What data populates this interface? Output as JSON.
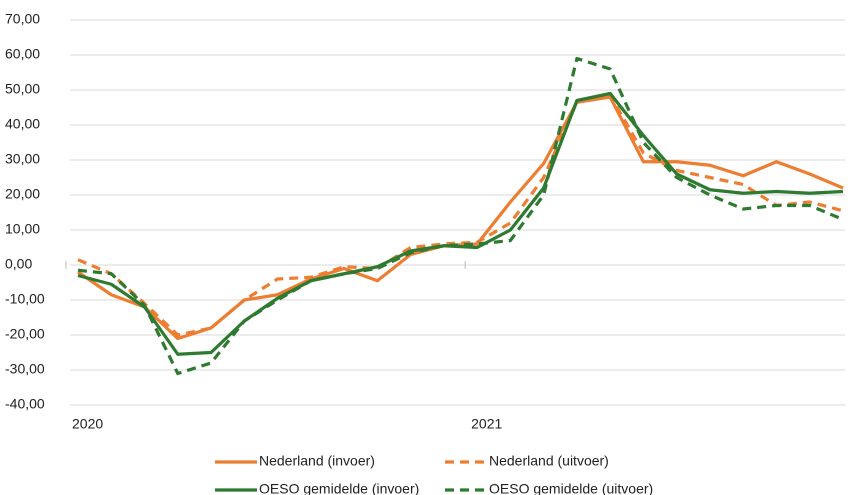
{
  "chart_data": {
    "type": "line",
    "categories": [
      "2020",
      null,
      null,
      null,
      null,
      null,
      null,
      null,
      null,
      null,
      null,
      null,
      "2021",
      null,
      null,
      null,
      null,
      null,
      null,
      null,
      null,
      null,
      null,
      null
    ],
    "series": [
      {
        "name": "Nederland (invoer)",
        "color": "#ed7d31",
        "dashed": false,
        "values": [
          -2,
          -8.5,
          -12,
          -21,
          -18,
          -10,
          -8.5,
          -4,
          -1,
          -4.5,
          3,
          5.5,
          6,
          18,
          29,
          46.5,
          48,
          29.5,
          29.5,
          28.5,
          25.5,
          29.5,
          26,
          22
        ]
      },
      {
        "name": "Nederland (uitvoer)",
        "color": "#ed7d31",
        "dashed": true,
        "values": [
          1.5,
          -2.5,
          -11,
          -20,
          -18,
          -10,
          -4,
          -3.5,
          -0.5,
          -1,
          5,
          6,
          6.5,
          12,
          25,
          46.5,
          48.5,
          32,
          27,
          25,
          23,
          17,
          18,
          15.5
        ]
      },
      {
        "name": "OESO gemidelde (invoer)",
        "color": "#2e7a30",
        "dashed": false,
        "values": [
          -3,
          -5.5,
          -12,
          -25.5,
          -25,
          -16,
          -9.5,
          -4.5,
          -2.5,
          -0.5,
          4,
          5.5,
          5,
          10,
          22,
          47,
          49,
          37,
          26,
          21.5,
          20.5,
          21,
          20.5,
          21
        ]
      },
      {
        "name": "OESO gemidelde (uitvoer)",
        "color": "#2e7a30",
        "dashed": true,
        "values": [
          -1.5,
          -2.5,
          -11.5,
          -31,
          -28,
          -16,
          -10,
          -4.5,
          -2.5,
          -1,
          3.5,
          5.5,
          6,
          7,
          20,
          59,
          56,
          35,
          25,
          20,
          16,
          17,
          17,
          13
        ]
      }
    ],
    "ylim": [
      -40,
      70
    ],
    "yticks": [
      {
        "value": -40,
        "label": "-40,00"
      },
      {
        "value": -30,
        "label": "-30,00"
      },
      {
        "value": -20,
        "label": "-20,00"
      },
      {
        "value": -10,
        "label": "-10,00"
      },
      {
        "value": 0,
        "label": "0,00"
      },
      {
        "value": 10,
        "label": "10,00"
      },
      {
        "value": 20,
        "label": "20,00"
      },
      {
        "value": 30,
        "label": "30,00"
      },
      {
        "value": 40,
        "label": "40,00"
      },
      {
        "value": 50,
        "label": "50,00"
      },
      {
        "value": 60,
        "label": "60,00"
      },
      {
        "value": 70,
        "label": "70,00"
      }
    ],
    "grid": true,
    "legend": "bottom"
  }
}
